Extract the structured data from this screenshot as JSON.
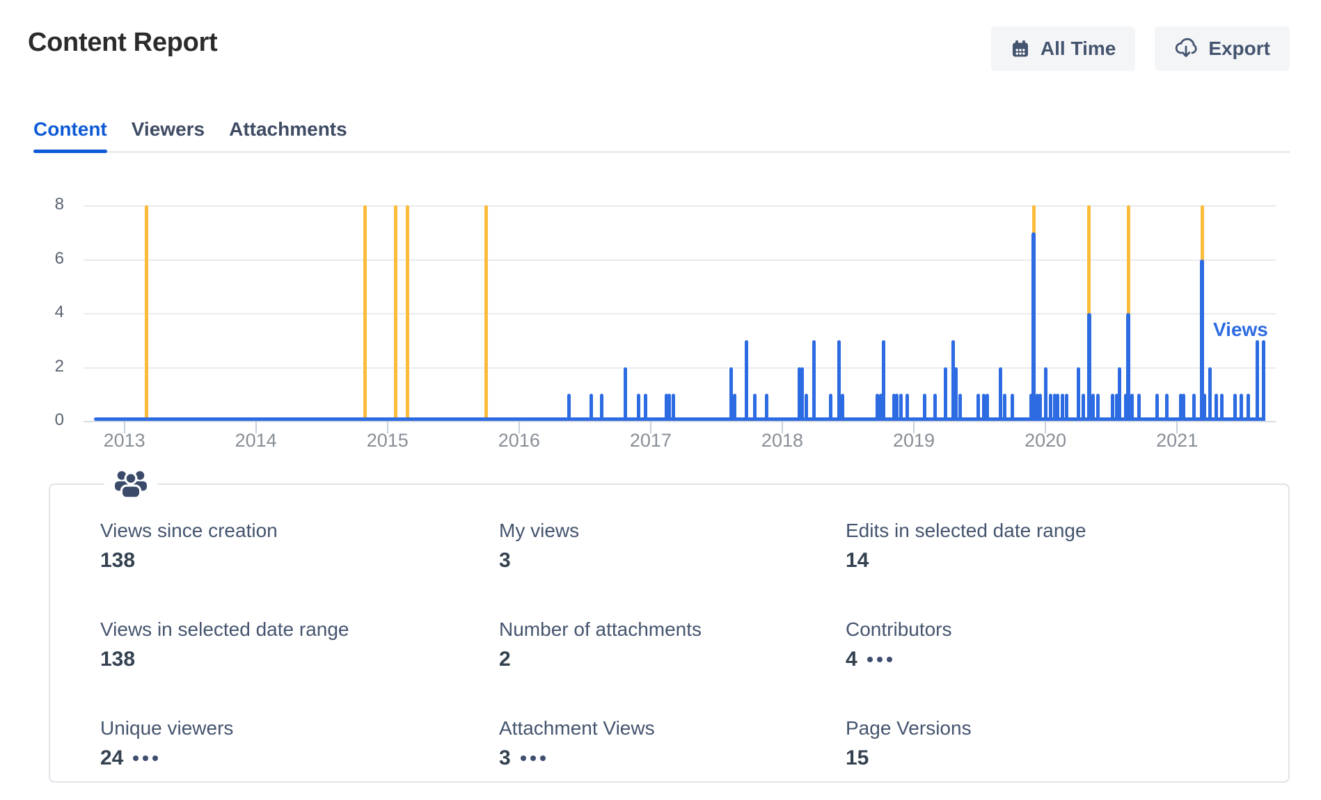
{
  "page": {
    "title": "Content Report"
  },
  "toolbar": {
    "all_time_button": {
      "label": "All Time",
      "icon": "calendar-icon"
    },
    "export_button": {
      "label": "Export",
      "icon": "cloud-download-icon"
    }
  },
  "tabs": [
    {
      "label": "Content",
      "active": true
    },
    {
      "label": "Viewers",
      "active": false
    },
    {
      "label": "Attachments",
      "active": false
    }
  ],
  "chart_data": {
    "type": "bar",
    "title": "",
    "xlabel": "",
    "ylabel": "",
    "x_domain": [
      2012.69,
      2021.75
    ],
    "x_ticks": [
      2013,
      2014,
      2015,
      2016,
      2017,
      2018,
      2019,
      2020,
      2021
    ],
    "ylim": [
      0,
      8
    ],
    "y_ticks": [
      0,
      2,
      4,
      6,
      8
    ],
    "grid": true,
    "data_span": [
      2012.77,
      2021.67
    ],
    "legend": {
      "label": "Views",
      "position": "inside-right"
    },
    "series": [
      {
        "name": "Views",
        "color": "#2D6BE3",
        "points": [
          [
            2016.38,
            1
          ],
          [
            2016.55,
            1
          ],
          [
            2016.63,
            1
          ],
          [
            2016.81,
            2
          ],
          [
            2016.91,
            1
          ],
          [
            2016.96,
            1
          ],
          [
            2017.12,
            1
          ],
          [
            2017.14,
            1
          ],
          [
            2017.17,
            1
          ],
          [
            2017.61,
            2
          ],
          [
            2017.64,
            1
          ],
          [
            2017.73,
            3
          ],
          [
            2017.79,
            1
          ],
          [
            2017.88,
            1
          ],
          [
            2018.13,
            2
          ],
          [
            2018.15,
            2
          ],
          [
            2018.18,
            1
          ],
          [
            2018.24,
            3
          ],
          [
            2018.37,
            1
          ],
          [
            2018.43,
            3
          ],
          [
            2018.46,
            1
          ],
          [
            2018.72,
            1
          ],
          [
            2018.75,
            1
          ],
          [
            2018.77,
            3
          ],
          [
            2018.85,
            1
          ],
          [
            2018.87,
            1
          ],
          [
            2018.9,
            1
          ],
          [
            2018.95,
            1
          ],
          [
            2019.08,
            1
          ],
          [
            2019.16,
            1
          ],
          [
            2019.24,
            2
          ],
          [
            2019.3,
            3
          ],
          [
            2019.32,
            2
          ],
          [
            2019.35,
            1
          ],
          [
            2019.49,
            1
          ],
          [
            2019.53,
            1
          ],
          [
            2019.56,
            1
          ],
          [
            2019.66,
            2
          ],
          [
            2019.69,
            1
          ],
          [
            2019.75,
            1
          ],
          [
            2019.89,
            1
          ],
          [
            2019.91,
            7
          ],
          [
            2019.94,
            1
          ],
          [
            2019.96,
            1
          ],
          [
            2020.0,
            2
          ],
          [
            2020.04,
            1
          ],
          [
            2020.07,
            1
          ],
          [
            2020.09,
            1
          ],
          [
            2020.13,
            1
          ],
          [
            2020.16,
            1
          ],
          [
            2020.25,
            2
          ],
          [
            2020.29,
            1
          ],
          [
            2020.33,
            4
          ],
          [
            2020.36,
            1
          ],
          [
            2020.4,
            1
          ],
          [
            2020.51,
            1
          ],
          [
            2020.54,
            1
          ],
          [
            2020.56,
            2
          ],
          [
            2020.61,
            1
          ],
          [
            2020.63,
            4
          ],
          [
            2020.66,
            1
          ],
          [
            2020.71,
            1
          ],
          [
            2020.85,
            1
          ],
          [
            2020.92,
            1
          ],
          [
            2021.03,
            1
          ],
          [
            2021.05,
            1
          ],
          [
            2021.13,
            1
          ],
          [
            2021.19,
            6
          ],
          [
            2021.21,
            1
          ],
          [
            2021.25,
            2
          ],
          [
            2021.3,
            1
          ],
          [
            2021.34,
            1
          ],
          [
            2021.44,
            1
          ],
          [
            2021.49,
            1
          ],
          [
            2021.54,
            1
          ],
          [
            2021.61,
            3
          ],
          [
            2021.66,
            3
          ]
        ]
      },
      {
        "name": "Edits",
        "color": "#FBBC3C",
        "points": [
          [
            2013.17,
            8
          ],
          [
            2014.83,
            8
          ],
          [
            2015.06,
            8
          ],
          [
            2015.15,
            8
          ],
          [
            2015.75,
            8
          ],
          [
            2019.91,
            8
          ],
          [
            2020.33,
            8
          ],
          [
            2020.63,
            8
          ],
          [
            2021.19,
            8
          ]
        ]
      }
    ]
  },
  "stats_card": {
    "icon": "people-group-icon",
    "stats": [
      {
        "label": "Views since creation",
        "value": "138",
        "more": false
      },
      {
        "label": "My views",
        "value": "3",
        "more": false
      },
      {
        "label": "Edits in selected date range",
        "value": "14",
        "more": false
      },
      {
        "label": "Views in selected date range",
        "value": "138",
        "more": false
      },
      {
        "label": "Number of attachments",
        "value": "2",
        "more": false
      },
      {
        "label": "Contributors",
        "value": "4",
        "more": true
      },
      {
        "label": "Unique viewers",
        "value": "24",
        "more": true
      },
      {
        "label": "Attachment Views",
        "value": "3",
        "more": true
      },
      {
        "label": "Page Versions",
        "value": "15",
        "more": false
      }
    ]
  },
  "colors": {
    "views_bar": "#2D6BE3",
    "edits_bar": "#FBBC3C",
    "active_tab": "#0E5AD6",
    "button_bg": "#F4F5F7",
    "text_navy": "#44546F",
    "gridline": "#E9EAEE"
  }
}
